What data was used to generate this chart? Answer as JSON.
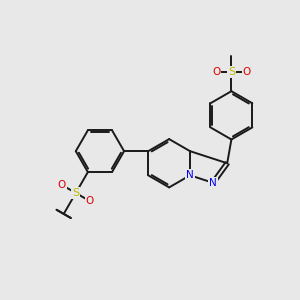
{
  "bg_color": "#e8e8e8",
  "bond_color": "#1a1a1a",
  "N_color": "#0000ee",
  "S_color": "#bbbb00",
  "O_color": "#dd0000",
  "bond_width": 1.4,
  "figsize": [
    3.0,
    3.0
  ],
  "dpi": 100,
  "xlim": [
    0,
    10
  ],
  "ylim": [
    0,
    10
  ]
}
